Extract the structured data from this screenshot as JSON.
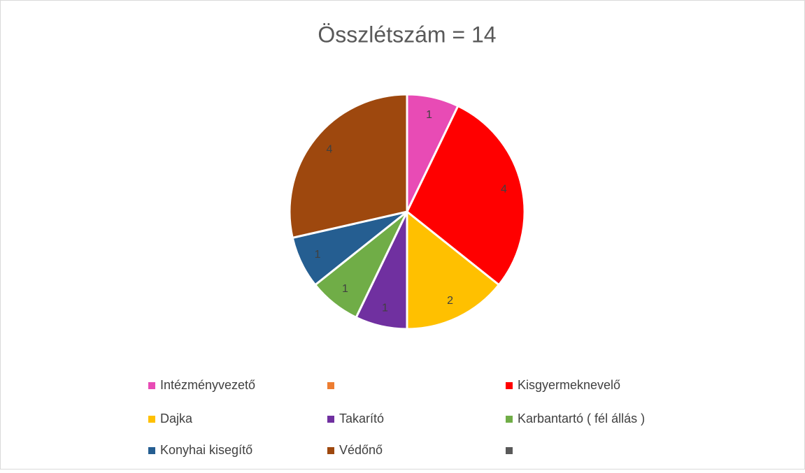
{
  "chart_data": {
    "type": "pie",
    "title": "Összlétszám = 14",
    "categories": [
      "Intézményvezető",
      null,
      "Kisgyermeknevelő",
      "Dajka",
      "Takarító",
      "Karbantartó ( fél állás )",
      "Konyhai kisegítő",
      "Védőnő",
      null
    ],
    "values": [
      1,
      null,
      4,
      2,
      1,
      1,
      1,
      4,
      null
    ],
    "colors": [
      "#e84bb5",
      "#ed7d31",
      "#ff0000",
      "#ffc000",
      "#7030a0",
      "#70ad47",
      "#255e91",
      "#9e480e",
      "#595959"
    ],
    "legend": "bottom"
  }
}
